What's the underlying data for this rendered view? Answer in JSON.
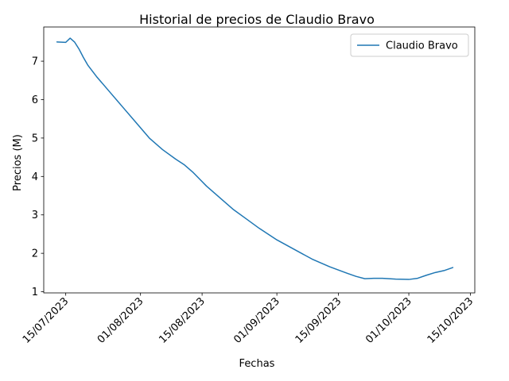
{
  "chart_data": {
    "type": "line",
    "title": "Historial de precios de Claudio Bravo",
    "xlabel": "Fechas",
    "ylabel": "Precios (M)",
    "x_tick_labels": [
      "15/07/2023",
      "01/08/2023",
      "15/08/2023",
      "01/09/2023",
      "15/09/2023",
      "01/10/2023",
      "15/10/2023"
    ],
    "x_tick_dates": [
      "2023-07-15",
      "2023-08-01",
      "2023-08-15",
      "2023-09-01",
      "2023-09-15",
      "2023-10-01",
      "2023-10-15"
    ],
    "y_ticks": [
      1,
      2,
      3,
      4,
      5,
      6,
      7
    ],
    "xlim": [
      "2023-07-10",
      "2023-10-16"
    ],
    "ylim": [
      0.97,
      7.89
    ],
    "grid": false,
    "legend_position": "top-right",
    "series": [
      {
        "name": "Claudio Bravo",
        "color": "#1f77b4",
        "x": [
          "2023-07-13",
          "2023-07-15",
          "2023-07-16",
          "2023-07-17",
          "2023-07-18",
          "2023-07-19",
          "2023-07-20",
          "2023-07-22",
          "2023-07-25",
          "2023-07-28",
          "2023-07-31",
          "2023-08-03",
          "2023-08-06",
          "2023-08-09",
          "2023-08-11",
          "2023-08-13",
          "2023-08-16",
          "2023-08-19",
          "2023-08-22",
          "2023-08-25",
          "2023-08-28",
          "2023-09-01",
          "2023-09-05",
          "2023-09-09",
          "2023-09-13",
          "2023-09-17",
          "2023-09-19",
          "2023-09-21",
          "2023-09-23",
          "2023-09-25",
          "2023-09-28",
          "2023-10-01",
          "2023-10-03",
          "2023-10-05",
          "2023-10-07",
          "2023-10-09",
          "2023-10-11"
        ],
        "y": [
          7.5,
          7.49,
          7.6,
          7.5,
          7.32,
          7.1,
          6.9,
          6.6,
          6.2,
          5.8,
          5.4,
          5.0,
          4.7,
          4.45,
          4.3,
          4.1,
          3.75,
          3.45,
          3.15,
          2.9,
          2.65,
          2.35,
          2.1,
          1.85,
          1.65,
          1.48,
          1.4,
          1.34,
          1.35,
          1.35,
          1.33,
          1.32,
          1.35,
          1.43,
          1.5,
          1.55,
          1.63
        ]
      }
    ]
  }
}
